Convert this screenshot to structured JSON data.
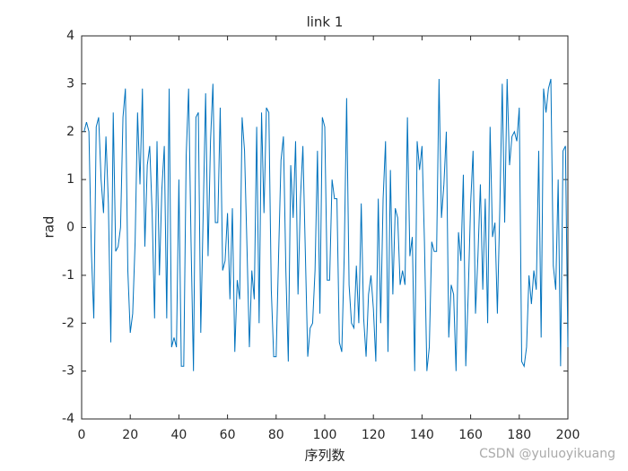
{
  "chart_data": {
    "type": "line",
    "title": "link 1",
    "x_label": "序列数",
    "y_label": "rad",
    "watermark": "CSDN @yuluoyikuang",
    "color": "#0072bd",
    "x": [
      1,
      2,
      3,
      4,
      5,
      6,
      7,
      8,
      9,
      10,
      11,
      12,
      13,
      14,
      15,
      16,
      17,
      18,
      19,
      20,
      21,
      22,
      23,
      24,
      25,
      26,
      27,
      28,
      29,
      30,
      31,
      32,
      33,
      34,
      35,
      36,
      37,
      38,
      39,
      40,
      41,
      42,
      43,
      44,
      45,
      46,
      47,
      48,
      49,
      50,
      51,
      52,
      53,
      54,
      55,
      56,
      57,
      58,
      59,
      60,
      61,
      62,
      63,
      64,
      65,
      66,
      67,
      68,
      69,
      70,
      71,
      72,
      73,
      74,
      75,
      76,
      77,
      78,
      79,
      80,
      81,
      82,
      83,
      84,
      85,
      86,
      87,
      88,
      89,
      90,
      91,
      92,
      93,
      94,
      95,
      96,
      97,
      98,
      99,
      100,
      101,
      102,
      103,
      104,
      105,
      106,
      107,
      108,
      109,
      110,
      111,
      112,
      113,
      114,
      115,
      116,
      117,
      118,
      119,
      120,
      121,
      122,
      123,
      124,
      125,
      126,
      127,
      128,
      129,
      130,
      131,
      132,
      133,
      134,
      135,
      136,
      137,
      138,
      139,
      140,
      141,
      142,
      143,
      144,
      145,
      146,
      147,
      148,
      149,
      150,
      151,
      152,
      153,
      154,
      155,
      156,
      157,
      158,
      159,
      160,
      161,
      162,
      163,
      164,
      165,
      166,
      167,
      168,
      169,
      170,
      171,
      172,
      173,
      174,
      175,
      176,
      177,
      178,
      179,
      180,
      181,
      182,
      183,
      184,
      185,
      186,
      187,
      188,
      189,
      190,
      191,
      192,
      193,
      194,
      195,
      196,
      197,
      198,
      199,
      200
    ],
    "values": [
      2.0,
      2.2,
      2.0,
      -0.5,
      -1.9,
      2.1,
      2.3,
      1.0,
      0.3,
      1.9,
      0.5,
      -2.4,
      2.4,
      -0.5,
      -0.4,
      0.0,
      2.3,
      2.9,
      -0.9,
      -2.2,
      -1.8,
      -0.3,
      2.4,
      0.9,
      2.9,
      -0.4,
      1.3,
      1.7,
      0.3,
      -1.9,
      1.8,
      -1.0,
      0.8,
      1.7,
      -1.9,
      2.9,
      -2.5,
      -2.3,
      -2.5,
      1.0,
      -2.9,
      -2.9,
      1.5,
      2.9,
      -0.3,
      -3.0,
      2.3,
      2.4,
      -2.2,
      0.3,
      2.8,
      -0.6,
      1.8,
      3.0,
      0.1,
      0.1,
      2.5,
      -0.9,
      -0.7,
      0.3,
      -1.5,
      0.4,
      -2.6,
      -1.1,
      -1.5,
      2.3,
      1.6,
      -0.4,
      -2.5,
      -0.9,
      -1.5,
      2.1,
      -2.0,
      2.4,
      0.3,
      2.5,
      2.4,
      -1.3,
      -2.7,
      -2.7,
      -0.6,
      1.4,
      1.9,
      -0.9,
      -2.8,
      1.3,
      0.2,
      1.8,
      -1.4,
      0.6,
      1.7,
      -0.5,
      -2.7,
      -2.1,
      -2.0,
      -0.9,
      1.6,
      -1.8,
      2.3,
      2.1,
      -1.1,
      -1.1,
      1.0,
      0.6,
      0.6,
      -2.4,
      -2.6,
      -0.6,
      2.7,
      -1.2,
      -2.0,
      -2.1,
      -0.8,
      -2.0,
      0.5,
      -1.9,
      -2.7,
      -1.4,
      -1.0,
      -1.7,
      -2.8,
      0.6,
      -2.0,
      0.6,
      1.8,
      -2.6,
      1.2,
      -1.4,
      0.4,
      0.2,
      -1.2,
      -0.9,
      -1.2,
      2.3,
      -0.6,
      -0.2,
      -3.0,
      1.8,
      1.2,
      1.7,
      -0.3,
      -3.0,
      -2.5,
      -0.3,
      -0.5,
      -0.5,
      3.1,
      0.2,
      0.9,
      2.0,
      -2.3,
      -1.2,
      -1.4,
      -3.0,
      -0.1,
      -0.7,
      1.1,
      -2.9,
      -1.4,
      0.5,
      1.6,
      -1.8,
      -0.6,
      0.9,
      -1.3,
      0.6,
      -2.0,
      2.1,
      -0.2,
      0.1,
      -1.8,
      0.4,
      3.0,
      0.1,
      3.1,
      1.3,
      1.9,
      2.0,
      1.8,
      2.5,
      -2.8,
      -2.9,
      -2.5,
      -1.0,
      -1.6,
      -0.9,
      -1.3,
      1.6,
      -2.3,
      2.9,
      2.4,
      2.9,
      3.1,
      -0.8,
      -1.3,
      1.0,
      -2.9,
      1.6,
      1.7,
      -2.5
    ],
    "xlim": [
      0,
      200
    ],
    "xticks": [
      0,
      20,
      40,
      60,
      80,
      100,
      120,
      140,
      160,
      180,
      200
    ],
    "ylim": [
      -4,
      4
    ],
    "yticks": [
      -4,
      -3,
      -2,
      -1,
      0,
      1,
      2,
      3,
      4
    ]
  }
}
